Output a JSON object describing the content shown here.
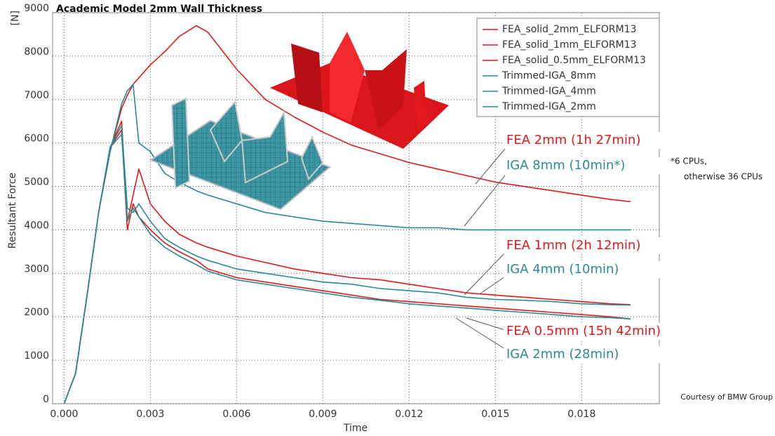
{
  "chart_data": {
    "type": "line",
    "title": "Academic Model 2mm Wall Thickness",
    "y_unit": "[N]",
    "y_label": "Resultant Force",
    "x_label": "Time",
    "xlim": [
      -0.0004,
      0.0207
    ],
    "ylim": [
      0,
      9000
    ],
    "xticks": [
      {
        "value": 0,
        "label": "0.000"
      },
      {
        "value": 0.003,
        "label": "0.003"
      },
      {
        "value": 0.006,
        "label": "0.006"
      },
      {
        "value": 0.009,
        "label": "0.009"
      },
      {
        "value": 0.012,
        "label": "0.012"
      },
      {
        "value": 0.015,
        "label": "0.015"
      },
      {
        "value": 0.018,
        "label": "0.018"
      }
    ],
    "yticks": [
      0,
      1000,
      2000,
      3000,
      4000,
      5000,
      6000,
      7000,
      8000,
      9000
    ],
    "grid": true,
    "legend": "upper right",
    "x": [
      0,
      0.0004,
      0.0008,
      0.0012,
      0.0016,
      0.002,
      0.0022,
      0.0024,
      0.0026,
      0.003,
      0.0035,
      0.004,
      0.0046,
      0.005,
      0.006,
      0.007,
      0.008,
      0.009,
      0.01,
      0.011,
      0.012,
      0.013,
      0.014,
      0.015,
      0.016,
      0.017,
      0.018,
      0.019,
      0.0197
    ],
    "series": [
      {
        "name": "FEA_solid_2mm_ELFORM13",
        "color": "#e0191c",
        "values": [
          0,
          700,
          2500,
          4400,
          5800,
          6800,
          7100,
          7350,
          7500,
          7800,
          8100,
          8450,
          8700,
          8550,
          7700,
          7000,
          6600,
          6250,
          5950,
          5750,
          5550,
          5400,
          5250,
          5100,
          5000,
          4900,
          4800,
          4700,
          4650
        ]
      },
      {
        "name": "FEA_solid_1mm_ELFORM13",
        "color": "#e0191c",
        "values": [
          0,
          700,
          2500,
          4400,
          5900,
          6500,
          4200,
          4800,
          5400,
          4600,
          4200,
          3900,
          3700,
          3600,
          3400,
          3250,
          3100,
          3000,
          2900,
          2850,
          2750,
          2650,
          2550,
          2500,
          2450,
          2400,
          2350,
          2300,
          2280
        ]
      },
      {
        "name": "FEA_solid_0.5mm_ELFORM13",
        "color": "#e0191c",
        "values": [
          0,
          700,
          2500,
          4400,
          5900,
          6300,
          4000,
          4600,
          4300,
          4000,
          3700,
          3500,
          3300,
          3100,
          2900,
          2800,
          2700,
          2600,
          2500,
          2400,
          2350,
          2300,
          2250,
          2200,
          2150,
          2100,
          2050,
          2000,
          1950
        ]
      },
      {
        "name": "Trimmed-IGA_8mm",
        "color": "#2a8a96",
        "values": [
          0,
          700,
          2500,
          4400,
          5800,
          6900,
          7200,
          7350,
          6000,
          5800,
          5300,
          5100,
          4900,
          4800,
          4600,
          4400,
          4300,
          4200,
          4150,
          4100,
          4050,
          4050,
          4000,
          4000,
          4000,
          4000,
          4000,
          4000,
          4000
        ]
      },
      {
        "name": "Trimmed-IGA_4mm",
        "color": "#2a8a96",
        "values": [
          0,
          700,
          2500,
          4400,
          5900,
          6400,
          4500,
          4400,
          4600,
          4200,
          3800,
          3600,
          3400,
          3300,
          3100,
          3000,
          2900,
          2800,
          2750,
          2650,
          2600,
          2550,
          2450,
          2400,
          2380,
          2350,
          2300,
          2280,
          2270
        ]
      },
      {
        "name": "Trimmed-IGA_2mm",
        "color": "#2a8a96",
        "values": [
          0,
          700,
          2500,
          4400,
          5900,
          6200,
          4200,
          4500,
          4300,
          3900,
          3600,
          3400,
          3200,
          3050,
          2850,
          2750,
          2650,
          2550,
          2450,
          2380,
          2300,
          2250,
          2200,
          2150,
          2100,
          2050,
          2000,
          1980,
          1950
        ]
      }
    ],
    "annotations": [
      {
        "text": "FEA 2mm (1h 27min)",
        "color": "#e0191c"
      },
      {
        "text": "IGA 8mm (10min*)",
        "color": "#2a8a96"
      },
      {
        "text": "FEA 1mm (2h 12min)",
        "color": "#e0191c"
      },
      {
        "text": "IGA 4mm (10min)",
        "color": "#2a8a96"
      },
      {
        "text": "FEA 0.5mm (15h 42min)",
        "color": "#e0191c"
      },
      {
        "text": "IGA 2mm (28min)",
        "color": "#2a8a96"
      }
    ],
    "notes": [
      "*6 CPUs,",
      "otherwise 36 CPUs",
      "Courtesy of BMW Group"
    ]
  }
}
